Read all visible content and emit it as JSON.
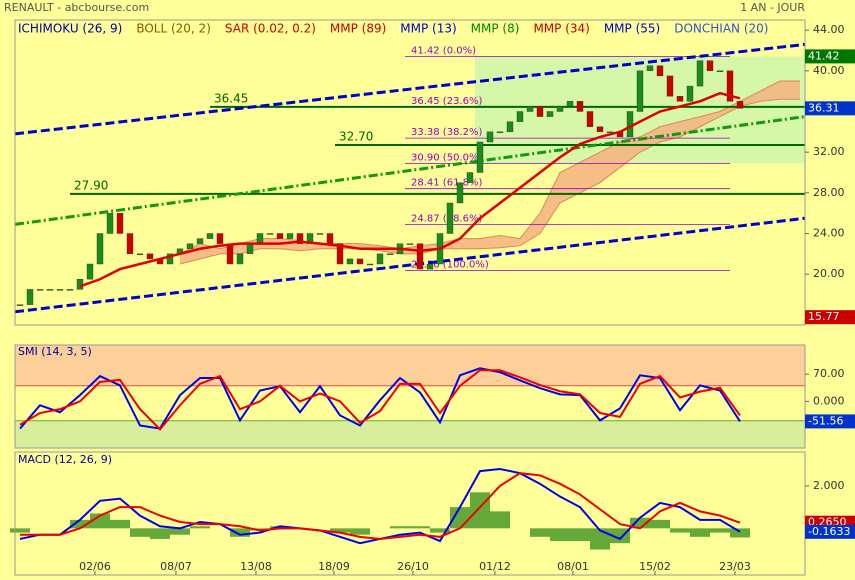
{
  "header": {
    "title": "RENAULT - abcbourse.com",
    "period": "1 AN - JOUR"
  },
  "chart_data": [
    {
      "type": "candlestick",
      "legend": [
        {
          "name": "ICHIMOKU (26, 9)",
          "color": "#000099"
        },
        {
          "name": "BOLL (20, 2)",
          "color": "#806000"
        },
        {
          "name": "SAR (0.02, 0.2)",
          "color": "#cc0000"
        },
        {
          "name": "MMP (89)",
          "color": "#cc0000"
        },
        {
          "name": "MMP (13)",
          "color": "#0000cc"
        },
        {
          "name": "MMP (8)",
          "color": "#008800"
        },
        {
          "name": "MMP (34)",
          "color": "#cc0000"
        },
        {
          "name": "MMP (55)",
          "color": "#0000cc"
        },
        {
          "name": "DONCHIAN (20)",
          "color": "#3355cc"
        }
      ],
      "xlim": [
        -0.5,
        78.5
      ],
      "ylim": [
        15,
        45
      ],
      "yticks": [
        {
          "value": 44,
          "label": "44.00"
        },
        {
          "value": 40,
          "label": "40.00"
        },
        {
          "value": 32,
          "label": "32.00"
        },
        {
          "value": 28,
          "label": "28.00"
        },
        {
          "value": 24,
          "label": "24.00"
        },
        {
          "value": 20,
          "label": "20.00"
        }
      ],
      "up_color": "#1a8c1a",
      "down_color": "#cc0000",
      "x": [
        0,
        1,
        2,
        3,
        4,
        5,
        6,
        7,
        8,
        9,
        10,
        11,
        12,
        13,
        14,
        15,
        16,
        17,
        18,
        19,
        20,
        21,
        22,
        23,
        24,
        25,
        26,
        27,
        28,
        29,
        30,
        31,
        32,
        33,
        34,
        35,
        36,
        37,
        38,
        39,
        40,
        41,
        42,
        43,
        44,
        45,
        46,
        47,
        48,
        49,
        50,
        51,
        52,
        53,
        54,
        55,
        56,
        57,
        58,
        59,
        60,
        61,
        62,
        63,
        64,
        65,
        66,
        67,
        68,
        69,
        70,
        71,
        72
      ],
      "values": [
        17,
        18.5,
        18.5,
        18.5,
        18.5,
        18.5,
        19.5,
        21,
        24,
        26,
        24,
        22,
        22,
        21.5,
        21,
        22,
        22.5,
        23,
        23.5,
        24,
        23,
        21,
        22,
        23,
        24,
        24,
        23.5,
        24,
        23,
        24,
        24,
        23,
        21,
        21.5,
        21,
        21,
        22,
        22,
        23,
        23,
        20.5,
        21,
        24,
        27,
        29,
        30,
        33,
        34,
        34,
        35,
        36,
        36.5,
        35.5,
        36,
        36.5,
        37,
        36,
        34.5,
        34,
        34,
        33.5,
        36,
        40,
        40.5,
        39.5,
        37.5,
        37,
        38.5,
        41,
        40,
        40,
        37,
        36.31
      ],
      "donchian": {
        "x": [
          45.5,
          78.5
        ],
        "values": [
          41.42,
          30.9
        ],
        "color": "#ccf5aa"
      },
      "cloud": {
        "x": [
          16,
          18,
          20,
          22,
          24,
          26,
          28,
          30,
          32,
          34,
          36,
          38,
          40,
          42,
          44,
          46,
          48,
          50,
          52,
          54,
          56,
          58,
          60,
          62,
          64,
          66,
          68,
          70,
          72,
          74,
          76,
          78
        ],
        "span_a": [
          22,
          23,
          22.5,
          23,
          23.5,
          23.5,
          23.3,
          23,
          23,
          23,
          22.8,
          22.5,
          22.8,
          23,
          23.5,
          23.5,
          23.8,
          23.5,
          26,
          30,
          31,
          32,
          33,
          33.5,
          34.5,
          35,
          35.5,
          36,
          37,
          38,
          39,
          39
        ],
        "span_b": [
          21,
          21.5,
          22,
          22,
          22.5,
          22.5,
          22.3,
          22.5,
          22.5,
          22.5,
          22.3,
          22,
          22,
          22.5,
          22.5,
          22.5,
          22.6,
          22.8,
          24,
          27,
          28,
          29,
          30.5,
          32,
          33,
          33.5,
          34.5,
          35.5,
          36.5,
          37,
          37.2,
          37.2
        ],
        "color": "#f4b183"
      },
      "ma": {
        "color": "#e00000",
        "x": [
          0,
          2,
          4,
          6,
          8,
          10,
          12,
          14,
          16,
          18,
          20,
          22,
          24,
          26,
          28,
          30,
          32,
          34,
          36,
          38,
          40,
          42,
          44,
          46,
          48,
          50,
          52,
          54,
          56,
          58,
          60,
          62,
          64,
          66,
          68,
          70,
          72
        ],
        "values": [
          null,
          null,
          null,
          18.8,
          19.5,
          20.5,
          21,
          21.5,
          22,
          22.5,
          22.8,
          23,
          23,
          23,
          23.2,
          23,
          22.8,
          22.5,
          22.5,
          22.5,
          22.3,
          22.5,
          23.5,
          25.5,
          27,
          28.5,
          30,
          31.5,
          32.8,
          33.5,
          34,
          35,
          36,
          36.5,
          37,
          37.8,
          37.3
        ]
      },
      "channels": [
        {
          "color": "#0000cc",
          "dash": "9,4",
          "x": [
            -0.5,
            78.5
          ],
          "values": [
            33.8,
            42.6
          ]
        },
        {
          "color": "#0000cc",
          "dash": "9,4",
          "x": [
            -0.5,
            78.5
          ],
          "values": [
            16.3,
            25.5
          ]
        },
        {
          "color": "#119911",
          "dash": "9,3,2,3",
          "x": [
            -0.5,
            78.5
          ],
          "values": [
            24.9,
            35.5
          ]
        }
      ],
      "fib": {
        "color": "#9900cc",
        "x": [
          38.5,
          71
        ],
        "levels": [
          {
            "value": 41.42,
            "label": "41.42 (0.0%)"
          },
          {
            "value": 36.45,
            "label": "36.45 (23.6%)"
          },
          {
            "value": 33.38,
            "label": "33.38 (38.2%)"
          },
          {
            "value": 30.9,
            "label": "30.90 (50.0%)"
          },
          {
            "value": 28.41,
            "label": "28.41 (61.8%)"
          },
          {
            "value": 24.87,
            "label": "24.87 (78.6%)"
          },
          {
            "value": 20.36,
            "label": "20.36 (100.0%)"
          }
        ]
      },
      "levels": {
        "color": "#006600",
        "items": [
          {
            "start": 19,
            "value": 36.45,
            "label": "36.45"
          },
          {
            "start": 31.5,
            "value": 32.7,
            "label": "32.70"
          },
          {
            "start": 5,
            "value": 27.9,
            "label": "27.90"
          }
        ]
      },
      "price_labels": [
        {
          "value": 41.42,
          "color": "#007700"
        },
        {
          "value": 36.31,
          "color": "#0033cc"
        },
        {
          "value": 15.77,
          "color": "#cc0000"
        }
      ]
    },
    {
      "type": "line",
      "title": "SMI (14, 3, 5)",
      "xlim": [
        -0.5,
        78.5
      ],
      "ylim": [
        -120,
        145
      ],
      "yticks": [
        {
          "value": 70,
          "label": "70.00"
        },
        {
          "value": 0,
          "label": "0.000"
        }
      ],
      "zones": [
        {
          "from": 40,
          "to": 145,
          "color": "#fdd09a",
          "line": "#e05050"
        },
        {
          "from": -120,
          "to": -50,
          "color": "#d9ee9a",
          "line": "#66aa33"
        }
      ],
      "x": [
        0,
        2,
        4,
        6,
        8,
        10,
        12,
        14,
        16,
        18,
        20,
        22,
        24,
        26,
        28,
        30,
        32,
        34,
        36,
        38,
        40,
        42,
        44,
        46,
        48,
        50,
        52,
        54,
        56,
        58,
        60,
        62,
        64,
        66,
        68,
        70,
        72
      ],
      "series": [
        {
          "color": "#0000ee",
          "values": [
            -70,
            -10,
            -28,
            16,
            65,
            41,
            -62,
            -70,
            16,
            60,
            60,
            -49,
            28,
            39,
            -28,
            39,
            -36,
            -62,
            3,
            60,
            23,
            -54,
            67,
            85,
            75,
            54,
            34,
            18,
            16,
            -49,
            -18,
            67,
            60,
            -23,
            41,
            28,
            -51.56
          ]
        },
        {
          "color": "#ee0000",
          "values": [
            -60,
            -30,
            -20,
            0,
            50,
            55,
            -20,
            -72,
            -10,
            45,
            65,
            -20,
            0,
            40,
            0,
            20,
            0,
            -55,
            -25,
            45,
            45,
            -30,
            40,
            80,
            80,
            62,
            42,
            26,
            18,
            -30,
            -40,
            45,
            65,
            10,
            25,
            35,
            -36.17
          ]
        }
      ],
      "last_labels": [
        {
          "value": -51.56,
          "color": "#0033cc"
        }
      ]
    },
    {
      "type": "macd",
      "title": "MACD (12, 26, 9)",
      "xlim": [
        -0.5,
        78.5
      ],
      "ylim": [
        -2.2,
        3.6
      ],
      "yticks": [
        {
          "value": 2,
          "label": "2.000"
        }
      ],
      "xticks": [
        {
          "value": 7.5,
          "label": "02/06"
        },
        {
          "value": 15.6,
          "label": "08/07"
        },
        {
          "value": 23.6,
          "label": "13/08"
        },
        {
          "value": 31.4,
          "label": "18/09"
        },
        {
          "value": 39.3,
          "label": "26/10"
        },
        {
          "value": 47.5,
          "label": "01/12"
        },
        {
          "value": 55.3,
          "label": "08/01"
        },
        {
          "value": 63.5,
          "label": "15/02"
        },
        {
          "value": 71.5,
          "label": "23/03"
        }
      ],
      "x": [
        0,
        2,
        4,
        6,
        8,
        10,
        12,
        14,
        16,
        18,
        20,
        22,
        24,
        26,
        28,
        30,
        32,
        34,
        36,
        38,
        40,
        42,
        44,
        46,
        48,
        50,
        52,
        54,
        56,
        58,
        60,
        62,
        64,
        66,
        68,
        70,
        72
      ],
      "histogram": {
        "color": "#4a9a2a",
        "values": [
          -0.2,
          0,
          0,
          0.4,
          0.7,
          0.4,
          -0.4,
          -0.5,
          -0.3,
          0.1,
          0,
          -0.4,
          -0.1,
          0.1,
          0,
          0,
          -0.2,
          -0.3,
          0,
          0.1,
          0.1,
          -0.2,
          1.0,
          1.7,
          0.8,
          0,
          -0.4,
          -0.6,
          -0.6,
          -1.0,
          -0.7,
          0.5,
          0.4,
          -0.2,
          -0.4,
          -0.2,
          -0.43
        ]
      },
      "series": [
        {
          "color": "#0000ee",
          "values": [
            -0.5,
            -0.3,
            -0.3,
            0.4,
            1.3,
            1.4,
            0.6,
            0.1,
            0.0,
            0.3,
            0.2,
            -0.3,
            -0.2,
            0.1,
            0.0,
            -0.1,
            -0.4,
            -0.7,
            -0.5,
            -0.3,
            -0.2,
            -0.6,
            1.0,
            2.7,
            2.8,
            2.6,
            2.1,
            1.5,
            1.0,
            -0.1,
            -0.5,
            0.5,
            1.2,
            1.0,
            0.4,
            0.4,
            -0.1633
          ]
        },
        {
          "color": "#ee0000",
          "values": [
            -0.3,
            -0.3,
            -0.3,
            0.0,
            0.6,
            1.0,
            1.0,
            0.6,
            0.3,
            0.2,
            0.2,
            0.1,
            -0.1,
            0.0,
            0.0,
            -0.1,
            -0.2,
            -0.4,
            -0.5,
            -0.4,
            -0.3,
            -0.4,
            0.0,
            1.0,
            2.0,
            2.6,
            2.5,
            2.1,
            1.6,
            0.9,
            0.2,
            0.0,
            0.8,
            1.2,
            0.8,
            0.6,
            0.265
          ]
        }
      ],
      "last_labels": [
        {
          "value": 0.265,
          "label": "0.2650",
          "color": "#cc0000"
        },
        {
          "value": -0.1633,
          "color": "#0033cc"
        }
      ]
    }
  ]
}
